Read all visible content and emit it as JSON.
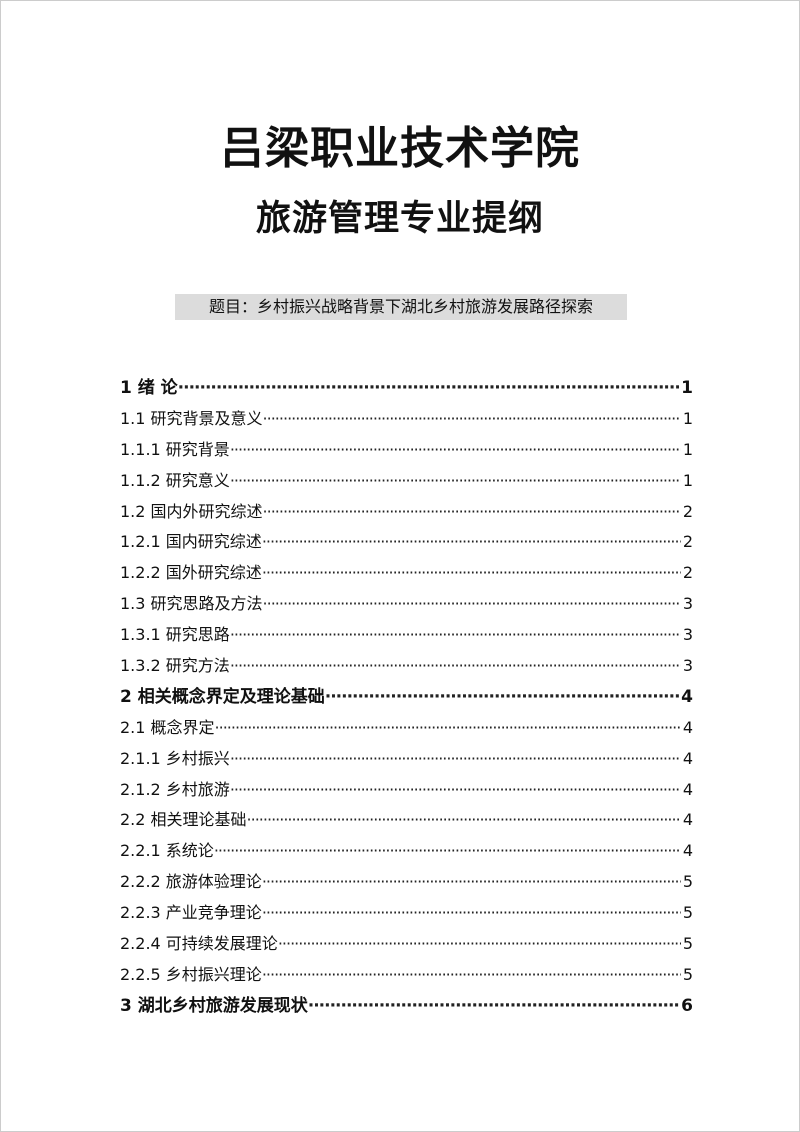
{
  "title": "吕梁职业技术学院",
  "subtitle": "旅游管理专业提纲",
  "topic": "题目：乡村振兴战略背景下湖北乡村旅游发展路径探索",
  "toc": [
    {
      "label": "1 绪 论",
      "page": "1",
      "bold": true
    },
    {
      "label": "1.1  研究背景及意义",
      "page": "1"
    },
    {
      "label": "1.1.1  研究背景",
      "page": "1"
    },
    {
      "label": "1.1.2  研究意义",
      "page": "1"
    },
    {
      "label": "1.2  国内外研究综述",
      "page": "2"
    },
    {
      "label": "1.2.1  国内研究综述",
      "page": "2"
    },
    {
      "label": "1.2.2  国外研究综述",
      "page": "2"
    },
    {
      "label": "1.3  研究思路及方法",
      "page": "3"
    },
    {
      "label": "1.3.1  研究思路",
      "page": "3"
    },
    {
      "label": "1.3.2  研究方法",
      "page": "3"
    },
    {
      "label": "2  相关概念界定及理论基础",
      "page": "4",
      "bold": true
    },
    {
      "label": "2.1  概念界定",
      "page": "4"
    },
    {
      "label": "2.1.1  乡村振兴",
      "page": "4"
    },
    {
      "label": "2.1.2  乡村旅游",
      "page": "4"
    },
    {
      "label": "2.2  相关理论基础",
      "page": "4"
    },
    {
      "label": "2.2.1  系统论",
      "page": "4"
    },
    {
      "label": "2.2.2  旅游体验理论",
      "page": "5"
    },
    {
      "label": "2.2.3  产业竞争理论",
      "page": "5"
    },
    {
      "label": "2.2.4  可持续发展理论",
      "page": "5"
    },
    {
      "label": "2.2.5  乡村振兴理论",
      "page": "5"
    },
    {
      "label": "3  湖北乡村旅游发展现状",
      "page": "6",
      "bold": true
    }
  ]
}
